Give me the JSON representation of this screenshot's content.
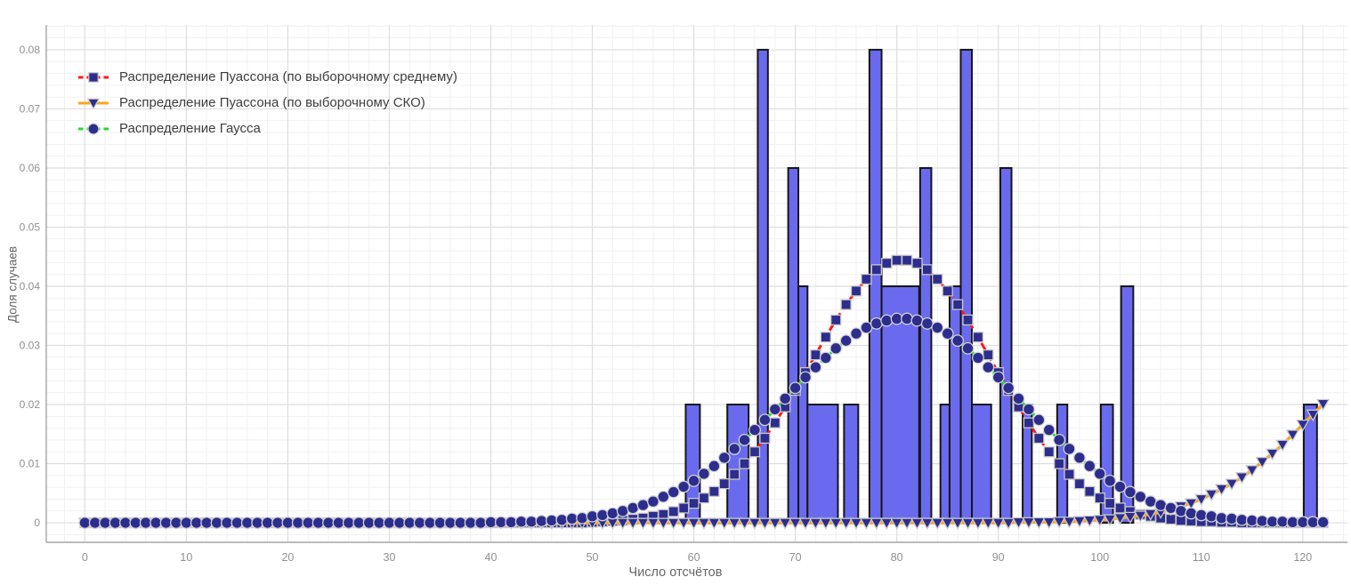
{
  "chart": {
    "xlabel": "Число отсчётов",
    "ylabel": "Доля случаев",
    "legend": [
      {
        "label": "Распределение Пуассона (по выборочному среднему)"
      },
      {
        "label": "Распределение Пуассона (по выборочному СКО)"
      },
      {
        "label": "Распределение Гаусса"
      }
    ]
  },
  "chart_data": {
    "type": "bar",
    "subtype": "histogram-with-line-overlays",
    "title": "",
    "xlabel": "Число отсчётов",
    "ylabel": "Доля случаев",
    "xlim": [
      -3.8,
      124.4
    ],
    "ylim": [
      -0.0033,
      0.0842
    ],
    "x_ticks": [
      0,
      10,
      20,
      30,
      40,
      50,
      60,
      70,
      80,
      90,
      100,
      110,
      120
    ],
    "y_ticks": [
      0,
      0.01,
      0.02,
      0.03,
      0.04,
      0.05,
      0.06,
      0.07,
      0.08
    ],
    "y_tick_labels": [
      "0",
      "0.01",
      "0.02",
      "0.03",
      "0.04",
      "0.05",
      "0.06",
      "0.07",
      "0.08"
    ],
    "grid": {
      "on": true,
      "minor_x_step": 2,
      "minor_y_step": 0.002,
      "minor_color": "#f1f1f1",
      "major_color": "#dedede",
      "spine_color": "#a5a5a5"
    },
    "legend_position": "top-left-inside",
    "bar_style": {
      "fill": "#6a6aef",
      "stroke": "#161616",
      "stroke_width": 2
    },
    "bars": [
      {
        "x0": 59.2,
        "x1": 60.6,
        "h": 0.02
      },
      {
        "x0": 63.3,
        "x1": 65.4,
        "h": 0.02
      },
      {
        "x0": 66.3,
        "x1": 67.3,
        "h": 0.08
      },
      {
        "x0": 69.3,
        "x1": 70.3,
        "h": 0.06
      },
      {
        "x0": 70.3,
        "x1": 71.2,
        "h": 0.04
      },
      {
        "x0": 71.2,
        "x1": 74.2,
        "h": 0.02
      },
      {
        "x0": 74.8,
        "x1": 76.2,
        "h": 0.02
      },
      {
        "x0": 77.3,
        "x1": 78.5,
        "h": 0.08
      },
      {
        "x0": 78.5,
        "x1": 82.2,
        "h": 0.04
      },
      {
        "x0": 82.3,
        "x1": 83.4,
        "h": 0.06
      },
      {
        "x0": 84.3,
        "x1": 85.2,
        "h": 0.02
      },
      {
        "x0": 85.2,
        "x1": 86.3,
        "h": 0.04
      },
      {
        "x0": 86.3,
        "x1": 87.4,
        "h": 0.08
      },
      {
        "x0": 87.4,
        "x1": 89.3,
        "h": 0.02
      },
      {
        "x0": 90.2,
        "x1": 91.3,
        "h": 0.06
      },
      {
        "x0": 92.4,
        "x1": 93.3,
        "h": 0.02
      },
      {
        "x0": 95.8,
        "x1": 96.8,
        "h": 0.02
      },
      {
        "x0": 100.1,
        "x1": 101.3,
        "h": 0.02
      },
      {
        "x0": 102.1,
        "x1": 103.3,
        "h": 0.04
      },
      {
        "x0": 120.1,
        "x1": 121.4,
        "h": 0.02
      }
    ],
    "series": [
      {
        "name": "Распределение Пуассона (по выборочному среднему)",
        "model": "poisson",
        "lambda": 80.5,
        "peak": 0.0444,
        "line_color": "#ff1a1a",
        "line_style": "dashed",
        "line_width": 3,
        "dash": "9 5",
        "marker": "square",
        "marker_fill": "#2d2d8e",
        "marker_stroke": "#c8c8c8",
        "x_start": 0,
        "x_end": 122,
        "values": [
          0,
          0,
          0,
          0,
          0,
          0,
          0,
          0,
          0,
          0,
          0,
          0,
          0,
          0,
          0,
          0,
          0,
          0,
          0,
          0,
          0,
          0,
          0,
          0,
          0,
          0,
          0,
          0,
          0,
          0,
          0,
          0,
          0,
          0,
          0,
          0,
          0,
          0,
          0,
          0,
          0,
          0,
          0,
          0,
          0,
          0,
          0,
          0,
          0,
          0,
          0.0001,
          0.0002,
          0.0003,
          0.0004,
          0.0006,
          0.0008,
          0.0011,
          0.0014,
          0.0019,
          0.0025,
          0.0033,
          0.0042,
          0.0053,
          0.0066,
          0.0082,
          0.01,
          0.012,
          0.0143,
          0.0169,
          0.0196,
          0.0224,
          0.0254,
          0.0284,
          0.0314,
          0.0343,
          0.0369,
          0.0392,
          0.0412,
          0.0428,
          0.0439,
          0.0444,
          0.0444,
          0.0439,
          0.0428,
          0.0412,
          0.0392,
          0.0369,
          0.0343,
          0.0314,
          0.0284,
          0.0254,
          0.0224,
          0.0196,
          0.0169,
          0.0143,
          0.012,
          0.01,
          0.0082,
          0.0066,
          0.0053,
          0.0042,
          0.0033,
          0.0025,
          0.0019,
          0.0014,
          0.0011,
          0.0008,
          0.0006,
          0.0004,
          0.0003,
          0.0002,
          0.0002,
          0.0001,
          0.0001,
          0,
          0,
          0,
          0,
          0,
          0,
          0,
          0,
          0
        ]
      },
      {
        "name": "Распределение Пуассона (по выборочному СКО)",
        "model": "poisson",
        "lambda": 134,
        "value_at_121": 0.0183,
        "line_color": "#ffa41c",
        "line_style": "solid",
        "line_width": 3.5,
        "dash": "",
        "marker": "triangle-down",
        "marker_fill": "#2d2d8e",
        "marker_stroke": "#c8c8c8",
        "x_start": 0,
        "x_end": 122,
        "values": [
          0,
          0,
          0,
          0,
          0,
          0,
          0,
          0,
          0,
          0,
          0,
          0,
          0,
          0,
          0,
          0,
          0,
          0,
          0,
          0,
          0,
          0,
          0,
          0,
          0,
          0,
          0,
          0,
          0,
          0,
          0,
          0,
          0,
          0,
          0,
          0,
          0,
          0,
          0,
          0,
          0,
          0,
          0,
          0,
          0,
          0,
          0,
          0,
          0,
          0,
          0,
          0,
          0,
          0,
          0,
          0,
          0,
          0,
          0,
          0,
          0,
          0,
          0,
          0,
          0,
          0,
          0,
          0,
          0,
          0,
          0,
          0,
          0,
          0,
          0,
          0,
          0,
          0,
          0,
          0,
          0,
          0,
          0,
          0,
          0,
          0,
          0,
          0,
          0,
          0,
          0,
          0,
          0.0001,
          0.0001,
          0.0001,
          0.0001,
          0.0002,
          0.0002,
          0.0003,
          0.0004,
          0.0005,
          0.0006,
          0.0008,
          0.001,
          0.0012,
          0.0015,
          0.0018,
          0.0023,
          0.0028,
          0.0033,
          0.004,
          0.0048,
          0.0057,
          0.0066,
          0.0077,
          0.0089,
          0.0103,
          0.0117,
          0.0132,
          0.0149,
          0.0166,
          0.0183,
          0.0201
        ]
      },
      {
        "name": "Распределение Гаусса",
        "model": "gaussian",
        "mu": 80.5,
        "sigma": 11.6,
        "peak": 0.0345,
        "line_color": "#22dd33",
        "line_style": "dashed",
        "line_width": 3,
        "dash": "7 5",
        "marker": "circle",
        "marker_fill": "#2d2d8e",
        "marker_stroke": "#d2d2d2",
        "x_start": 0,
        "x_end": 122,
        "values": [
          0,
          0,
          0,
          0,
          0,
          0,
          0,
          0,
          0,
          0,
          0,
          0,
          0,
          0,
          0,
          0,
          0,
          0,
          0,
          0,
          0,
          0,
          0,
          0,
          0,
          0,
          0,
          0,
          0,
          0,
          0,
          0,
          0,
          0,
          0,
          0,
          0,
          0,
          0,
          0,
          0.0001,
          0.0001,
          0.0001,
          0.0002,
          0.0002,
          0.0003,
          0.0004,
          0.0005,
          0.0007,
          0.0008,
          0.0011,
          0.0013,
          0.0016,
          0.002,
          0.0025,
          0.003,
          0.0036,
          0.0044,
          0.0052,
          0.0061,
          0.0071,
          0.0083,
          0.0096,
          0.011,
          0.0125,
          0.014,
          0.0157,
          0.0174,
          0.0192,
          0.021,
          0.0228,
          0.0246,
          0.0263,
          0.0279,
          0.0295,
          0.0308,
          0.032,
          0.033,
          0.0337,
          0.0342,
          0.0345,
          0.0345,
          0.0342,
          0.0337,
          0.033,
          0.032,
          0.0308,
          0.0295,
          0.0279,
          0.0263,
          0.0246,
          0.0228,
          0.021,
          0.0192,
          0.0174,
          0.0157,
          0.014,
          0.0125,
          0.011,
          0.0096,
          0.0083,
          0.0071,
          0.0061,
          0.0052,
          0.0044,
          0.0036,
          0.003,
          0.0025,
          0.002,
          0.0016,
          0.0013,
          0.0011,
          0.0008,
          0.0007,
          0.0005,
          0.0004,
          0.0003,
          0.0002,
          0.0002,
          0.0001,
          0.0001,
          0.0001,
          0.0001
        ]
      }
    ]
  }
}
